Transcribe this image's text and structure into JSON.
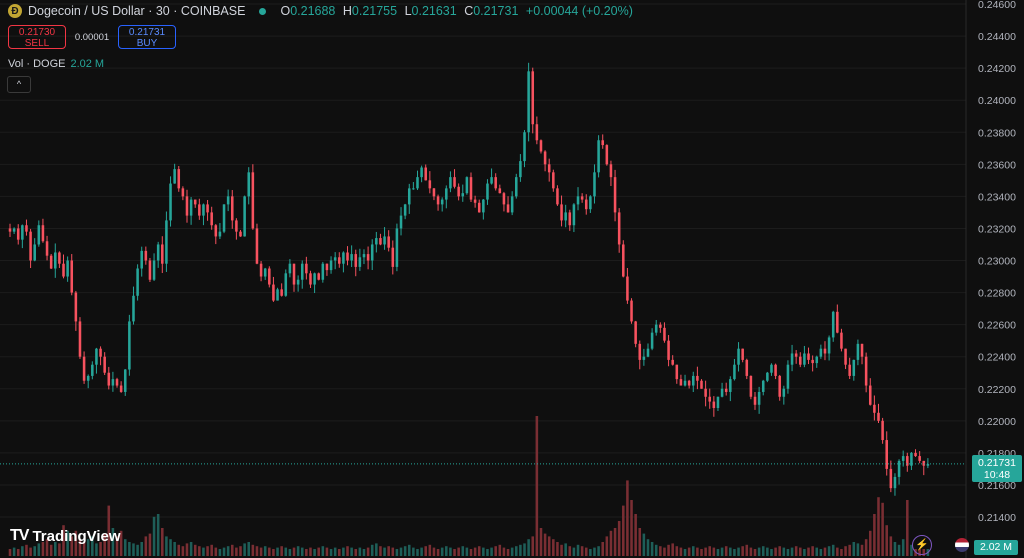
{
  "header": {
    "coin_letter": "Ð",
    "symbol_title": "Dogecoin / US Dollar · 30 · COINBASE",
    "ohlc": {
      "o_label": "O",
      "o": "0.21688",
      "h_label": "H",
      "h": "0.21755",
      "l_label": "L",
      "l": "0.21631",
      "c_label": "C",
      "c": "0.21731",
      "change": "+0.00044 (+0.20%)"
    }
  },
  "trade": {
    "sell_price": "0.21730",
    "sell_label": "SELL",
    "spread": "0.00001",
    "buy_price": "0.21731",
    "buy_label": "BUY"
  },
  "volume_legend": {
    "label": "Vol · DOGE",
    "value": "2.02 M"
  },
  "collapse_glyph": "^",
  "brand": {
    "logo": "TV",
    "name": "TradingView"
  },
  "price_badge": {
    "price": "0.21731",
    "countdown": "10:48"
  },
  "volume_badge": "2.02 M",
  "bolt_glyph": "⚡",
  "colors": {
    "up": "#26a69a",
    "down": "#f7525f",
    "up_vol": "#1e5e58",
    "down_vol": "#7a2e33",
    "background": "#0f0f0f"
  },
  "chart_data": {
    "type": "candlestick",
    "yticks": [
      "0.24600",
      "0.24400",
      "0.24200",
      "0.24000",
      "0.23800",
      "0.23600",
      "0.23400",
      "0.23200",
      "0.23000",
      "0.22800",
      "0.22600",
      "0.22400",
      "0.22200",
      "0.22000",
      "0.21800",
      "0.21600",
      "0.21400"
    ],
    "ylim": [
      0.213,
      0.246
    ],
    "last_price": 0.21731,
    "close_path": [
      0.2318,
      0.232,
      0.2313,
      0.2322,
      0.2318,
      0.23,
      0.231,
      0.2322,
      0.2312,
      0.2303,
      0.2295,
      0.2305,
      0.2298,
      0.229,
      0.23,
      0.228,
      0.2262,
      0.224,
      0.2225,
      0.2228,
      0.2235,
      0.2245,
      0.224,
      0.223,
      0.2222,
      0.2226,
      0.2222,
      0.2218,
      0.2232,
      0.2262,
      0.2278,
      0.2295,
      0.2306,
      0.23,
      0.2288,
      0.23,
      0.231,
      0.2298,
      0.2325,
      0.2348,
      0.2357,
      0.2345,
      0.234,
      0.2328,
      0.2338,
      0.2335,
      0.2328,
      0.2335,
      0.233,
      0.2322,
      0.2315,
      0.2318,
      0.2335,
      0.234,
      0.2325,
      0.2318,
      0.2315,
      0.234,
      0.2355,
      0.232,
      0.2298,
      0.229,
      0.2295,
      0.2285,
      0.2275,
      0.2282,
      0.2278,
      0.2292,
      0.2298,
      0.2285,
      0.2288,
      0.2298,
      0.2292,
      0.2285,
      0.2292,
      0.2288,
      0.2298,
      0.2294,
      0.23,
      0.2302,
      0.2298,
      0.2305,
      0.23,
      0.2304,
      0.2296,
      0.2302,
      0.2304,
      0.23,
      0.231,
      0.2314,
      0.231,
      0.2315,
      0.2308,
      0.2296,
      0.232,
      0.2328,
      0.2335,
      0.2345,
      0.2345,
      0.2352,
      0.2358,
      0.235,
      0.2345,
      0.234,
      0.2335,
      0.2338,
      0.2345,
      0.2352,
      0.2346,
      0.234,
      0.2342,
      0.2352,
      0.2338,
      0.2336,
      0.233,
      0.2338,
      0.2348,
      0.2352,
      0.2345,
      0.2342,
      0.2335,
      0.233,
      0.234,
      0.2352,
      0.2362,
      0.238,
      0.2418,
      0.2385,
      0.2375,
      0.2368,
      0.236,
      0.2355,
      0.2345,
      0.2335,
      0.2325,
      0.233,
      0.2322,
      0.2335,
      0.234,
      0.2338,
      0.2332,
      0.234,
      0.2355,
      0.2375,
      0.2372,
      0.236,
      0.2352,
      0.233,
      0.231,
      0.229,
      0.2275,
      0.2262,
      0.2248,
      0.2238,
      0.224,
      0.2245,
      0.2255,
      0.226,
      0.2258,
      0.225,
      0.2238,
      0.2235,
      0.2226,
      0.2222,
      0.2225,
      0.2222,
      0.2228,
      0.2225,
      0.222,
      0.2215,
      0.2212,
      0.2208,
      0.2215,
      0.222,
      0.2218,
      0.2226,
      0.2235,
      0.2245,
      0.2238,
      0.2228,
      0.2215,
      0.221,
      0.2218,
      0.2225,
      0.223,
      0.2235,
      0.2228,
      0.2215,
      0.222,
      0.2235,
      0.2242,
      0.224,
      0.2235,
      0.2242,
      0.2238,
      0.2236,
      0.224,
      0.2245,
      0.2242,
      0.2252,
      0.2268,
      0.2255,
      0.2245,
      0.2235,
      0.2228,
      0.2238,
      0.2248,
      0.224,
      0.2222,
      0.221,
      0.2205,
      0.22,
      0.2188,
      0.217,
      0.2158,
      0.2165,
      0.2175,
      0.2178,
      0.2172,
      0.218,
      0.2178,
      0.2175,
      0.2172,
      0.2173
    ],
    "volume_relative": [
      0.05,
      0.06,
      0.05,
      0.07,
      0.08,
      0.06,
      0.07,
      0.09,
      0.1,
      0.12,
      0.08,
      0.1,
      0.09,
      0.22,
      0.18,
      0.14,
      0.18,
      0.12,
      0.1,
      0.12,
      0.14,
      0.09,
      0.1,
      0.16,
      0.36,
      0.2,
      0.14,
      0.18,
      0.12,
      0.1,
      0.09,
      0.08,
      0.1,
      0.14,
      0.16,
      0.28,
      0.3,
      0.2,
      0.14,
      0.12,
      0.1,
      0.08,
      0.07,
      0.09,
      0.1,
      0.08,
      0.07,
      0.06,
      0.07,
      0.08,
      0.06,
      0.05,
      0.06,
      0.07,
      0.08,
      0.06,
      0.07,
      0.09,
      0.1,
      0.08,
      0.07,
      0.06,
      0.07,
      0.06,
      0.05,
      0.06,
      0.07,
      0.06,
      0.05,
      0.06,
      0.07,
      0.06,
      0.05,
      0.06,
      0.05,
      0.06,
      0.07,
      0.06,
      0.05,
      0.06,
      0.05,
      0.06,
      0.07,
      0.06,
      0.05,
      0.06,
      0.05,
      0.06,
      0.08,
      0.09,
      0.07,
      0.06,
      0.07,
      0.06,
      0.05,
      0.06,
      0.07,
      0.08,
      0.06,
      0.05,
      0.06,
      0.07,
      0.08,
      0.06,
      0.05,
      0.06,
      0.07,
      0.06,
      0.05,
      0.06,
      0.07,
      0.06,
      0.05,
      0.06,
      0.07,
      0.06,
      0.05,
      0.06,
      0.07,
      0.08,
      0.06,
      0.05,
      0.06,
      0.07,
      0.08,
      0.09,
      0.12,
      0.14,
      1.0,
      0.2,
      0.16,
      0.14,
      0.12,
      0.1,
      0.08,
      0.09,
      0.07,
      0.06,
      0.08,
      0.07,
      0.06,
      0.05,
      0.06,
      0.07,
      0.1,
      0.14,
      0.18,
      0.2,
      0.25,
      0.36,
      0.54,
      0.4,
      0.3,
      0.2,
      0.16,
      0.12,
      0.1,
      0.08,
      0.07,
      0.06,
      0.08,
      0.09,
      0.07,
      0.06,
      0.05,
      0.06,
      0.07,
      0.06,
      0.05,
      0.06,
      0.07,
      0.06,
      0.05,
      0.06,
      0.07,
      0.06,
      0.05,
      0.06,
      0.07,
      0.08,
      0.06,
      0.05,
      0.06,
      0.07,
      0.06,
      0.05,
      0.06,
      0.07,
      0.06,
      0.05,
      0.06,
      0.07,
      0.06,
      0.05,
      0.06,
      0.07,
      0.06,
      0.05,
      0.06,
      0.07,
      0.08,
      0.06,
      0.05,
      0.07,
      0.08,
      0.1,
      0.09,
      0.08,
      0.12,
      0.18,
      0.3,
      0.42,
      0.38,
      0.22,
      0.14,
      0.1,
      0.08,
      0.12,
      0.4,
      0.08
    ]
  }
}
